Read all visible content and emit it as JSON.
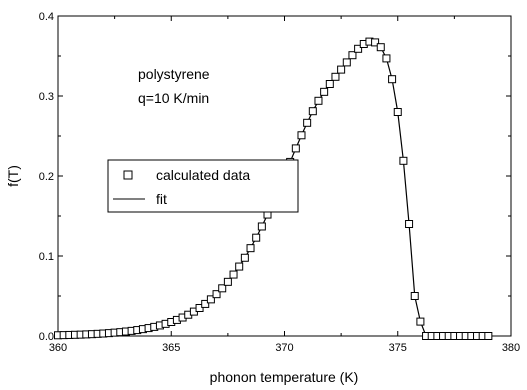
{
  "chart_data": {
    "type": "scatter",
    "xlabel": "phonon temperature (K)",
    "ylabel": "f(T)",
    "xlim": [
      360,
      380
    ],
    "ylim": [
      0.0,
      0.4
    ],
    "xticks": [
      360,
      365,
      370,
      375,
      380
    ],
    "yticks": [
      0.0,
      0.1,
      0.2,
      0.3,
      0.4
    ],
    "xtick_labels": [
      "360",
      "365",
      "370",
      "375",
      "380"
    ],
    "ytick_labels": [
      "0.0",
      "0.1",
      "0.2",
      "0.3",
      "0.4"
    ],
    "annotations": [
      "polystyrene",
      "q=10 K/min"
    ],
    "legend": {
      "placement": "center-left",
      "entries": [
        "calculated data",
        "fit"
      ]
    },
    "grid": false,
    "series": [
      {
        "name": "calculated data",
        "marker": "open-square",
        "x": [
          360.0,
          360.25,
          360.5,
          360.75,
          361.0,
          361.25,
          361.5,
          361.75,
          362.0,
          362.25,
          362.5,
          362.75,
          363.0,
          363.25,
          363.5,
          363.75,
          364.0,
          364.25,
          364.5,
          364.75,
          365.0,
          365.25,
          365.5,
          365.75,
          366.0,
          366.25,
          366.5,
          366.75,
          367.0,
          367.25,
          367.5,
          367.75,
          368.0,
          368.25,
          368.5,
          368.75,
          369.0,
          369.25,
          369.5,
          369.75,
          370.0,
          370.25,
          370.5,
          370.75,
          371.0,
          371.25,
          371.5,
          371.75,
          372.0,
          372.25,
          372.5,
          372.75,
          373.0,
          373.25,
          373.5,
          373.75,
          374.0,
          374.25,
          374.5,
          374.75,
          375.0,
          375.25,
          375.5,
          375.75,
          376.0,
          376.25,
          376.5,
          376.75,
          377.0,
          377.25,
          377.5,
          377.75,
          378.0,
          378.25,
          378.5,
          378.75,
          379.0
        ],
        "y": [
          0.0009,
          0.0011,
          0.0013,
          0.0015,
          0.0017,
          0.002,
          0.0023,
          0.0027,
          0.0031,
          0.0036,
          0.0042,
          0.0048,
          0.0056,
          0.0064,
          0.0074,
          0.0086,
          0.0099,
          0.0114,
          0.0132,
          0.0152,
          0.0175,
          0.0201,
          0.0231,
          0.0266,
          0.0305,
          0.035,
          0.0401,
          0.0458,
          0.0523,
          0.0596,
          0.0677,
          0.0768,
          0.0868,
          0.0978,
          0.1098,
          0.1229,
          0.1369,
          0.1518,
          0.1675,
          0.1839,
          0.2007,
          0.2176,
          0.2345,
          0.2509,
          0.2665,
          0.281,
          0.294,
          0.3052,
          0.315,
          0.324,
          0.333,
          0.342,
          0.351,
          0.359,
          0.365,
          0.368,
          0.367,
          0.361,
          0.347,
          0.321,
          0.28,
          0.219,
          0.14,
          0.05,
          0.018,
          0.0,
          0.0,
          0.0,
          0.0,
          0.0,
          0.0,
          0.0,
          0.0,
          0.0,
          0.0,
          0.0,
          0.0
        ]
      },
      {
        "name": "fit",
        "style": "solid-line",
        "x": [],
        "y": []
      }
    ]
  }
}
